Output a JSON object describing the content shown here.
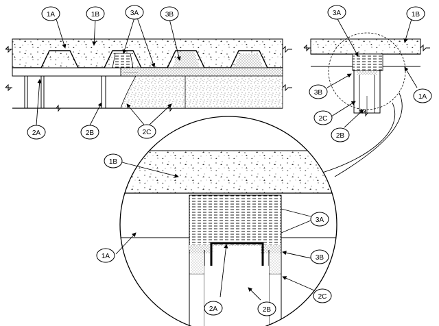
{
  "tags": {
    "t1A": "1A",
    "t1B": "1B",
    "t2A": "2A",
    "t2B": "2B",
    "t2C": "2C",
    "t3A": "3A",
    "t3B": "3B"
  },
  "colors": {
    "ink": "#000000",
    "paper": "#ffffff",
    "stipple": "#555555"
  }
}
